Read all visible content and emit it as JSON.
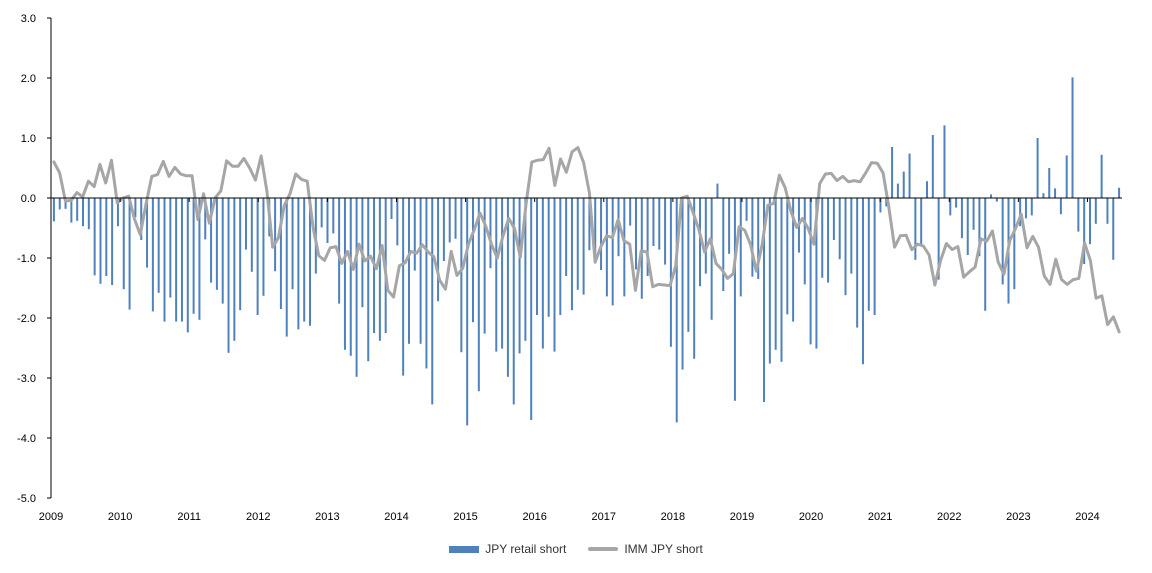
{
  "chart_data": {
    "type": "bar+line",
    "title": "",
    "xlabel": "",
    "ylabel": "",
    "ylim": [
      -5.0,
      3.0
    ],
    "y_ticks": [
      "3.0",
      "2.0",
      "1.0",
      "0.0",
      "-1.0",
      "-2.0",
      "-3.0",
      "-4.0",
      "-5.0"
    ],
    "y_tick_values": [
      3,
      2,
      1,
      0,
      -1,
      -2,
      -3,
      -4,
      -5
    ],
    "x_ticks": [
      "2009",
      "2010",
      "2011",
      "2012",
      "2013",
      "2014",
      "2015",
      "2016",
      "2017",
      "2018",
      "2019",
      "2020",
      "2021",
      "2022",
      "2023",
      "2024"
    ],
    "x_start_year": 2009,
    "x_end_year": 2024.5,
    "grid": false,
    "legend_position": "bottom-center",
    "colors": {
      "bar": "#4f81bd",
      "line": "#a6a6a6",
      "axis": "#000000"
    },
    "series": [
      {
        "name": "JPY retail short",
        "type": "bar",
        "values": [
          -0.39,
          -0.19,
          -0.18,
          -0.41,
          -0.38,
          -0.47,
          -0.52,
          -1.29,
          -1.43,
          -1.3,
          -1.45,
          -0.47,
          -1.52,
          -1.86,
          -0.32,
          -0.7,
          -1.16,
          -1.89,
          -1.58,
          -2.06,
          -1.66,
          -2.06,
          -2.06,
          -2.24,
          -1.93,
          -2.03,
          -0.69,
          -1.41,
          -1.53,
          -1.76,
          -2.58,
          -2.38,
          -1.87,
          -0.86,
          -1.23,
          -1.95,
          -1.63,
          -0.64,
          -1.22,
          -1.85,
          -2.31,
          -1.52,
          -2.19,
          -2.06,
          -2.13,
          -1.26,
          -0.49,
          -0.75,
          -0.59,
          -1.76,
          -2.53,
          -2.63,
          -2.98,
          -1.82,
          -2.72,
          -2.25,
          -2.38,
          -2.25,
          -0.35,
          -0.79,
          -2.96,
          -2.43,
          -1.21,
          -2.43,
          -2.84,
          -3.44,
          -1.72,
          -1.05,
          -0.74,
          -0.68,
          -2.57,
          -3.79,
          -2.07,
          -3.22,
          -2.26,
          -1.17,
          -2.56,
          -2.51,
          -2.98,
          -3.44,
          -2.59,
          -2.38,
          -3.7,
          -1.95,
          -2.51,
          -1.98,
          -2.56,
          -1.95,
          -1.3,
          -1.87,
          -1.53,
          -1.61,
          -0.87,
          -1.08,
          -1.2,
          -1.64,
          -1.79,
          -0.97,
          -1.64,
          -0.46,
          -1.19,
          -1.68,
          -1.3,
          -0.8,
          -0.86,
          -1.11,
          -2.48,
          -3.74,
          -2.86,
          -2.23,
          -2.68,
          -1.47,
          -1.26,
          -2.03,
          0.24,
          -1.55,
          -0.93,
          -3.38,
          -1.64,
          -0.38,
          -1.31,
          -1.35,
          -3.4,
          -2.76,
          -2.53,
          -2.73,
          -1.94,
          -2.06,
          -0.91,
          -1.44,
          -2.44,
          -2.51,
          -1.33,
          -1.41,
          -0.7,
          -1.02,
          -1.62,
          -1.26,
          -2.16,
          -2.77,
          -1.88,
          -1.95,
          -0.24,
          -0.14,
          0.85,
          0.24,
          0.44,
          0.74,
          -1.03,
          -0.77,
          0.28,
          1.05,
          -1.36,
          1.21,
          -0.29,
          -0.16,
          -0.67,
          -0.95,
          -0.53,
          -0.97,
          -1.88,
          0.06,
          -0.06,
          -1.44,
          -1.76,
          -1.52,
          -0.47,
          -0.34,
          -0.29,
          1.0,
          0.08,
          0.5,
          0.16,
          -0.27,
          0.71,
          2.01,
          -0.56,
          -1.1,
          -0.77,
          -0.43,
          0.72,
          -0.43,
          -1.03,
          0.17
        ]
      },
      {
        "name": "IMM JPY short",
        "type": "line",
        "values": [
          0.6,
          0.42,
          -0.05,
          -0.04,
          0.09,
          0.02,
          0.28,
          0.19,
          0.56,
          0.25,
          0.63,
          -0.08,
          0.0,
          0.03,
          -0.35,
          -0.61,
          -0.1,
          0.36,
          0.39,
          0.61,
          0.36,
          0.51,
          0.4,
          0.37,
          0.37,
          -0.36,
          0.07,
          -0.42,
          0.0,
          0.12,
          0.62,
          0.53,
          0.53,
          0.66,
          0.5,
          0.3,
          0.7,
          0.11,
          -0.82,
          -0.66,
          -0.13,
          0.07,
          0.4,
          0.31,
          0.28,
          -0.48,
          -0.96,
          -1.04,
          -0.83,
          -0.81,
          -1.09,
          -0.89,
          -1.19,
          -0.77,
          -1.05,
          -0.97,
          -1.18,
          -0.79,
          -1.54,
          -1.65,
          -1.13,
          -1.08,
          -0.89,
          -0.92,
          -0.78,
          -0.9,
          -0.98,
          -1.37,
          -1.52,
          -0.89,
          -1.29,
          -1.17,
          -0.77,
          -0.53,
          -0.25,
          -0.47,
          -0.77,
          -1.0,
          -0.63,
          -0.34,
          -0.51,
          -0.99,
          -0.1,
          0.6,
          0.63,
          0.64,
          0.83,
          0.21,
          0.65,
          0.43,
          0.77,
          0.84,
          0.59,
          0.09,
          -1.07,
          -0.81,
          -0.63,
          -0.66,
          -0.36,
          -0.71,
          -0.77,
          -1.54,
          -0.88,
          -0.9,
          -1.48,
          -1.44,
          -1.45,
          -1.46,
          -1.13,
          0.0,
          0.03,
          -0.24,
          -0.52,
          -0.9,
          -0.68,
          -1.09,
          -1.19,
          -1.34,
          -1.26,
          -0.48,
          -0.54,
          -0.78,
          -1.22,
          -0.78,
          -0.12,
          -0.09,
          0.38,
          0.17,
          -0.22,
          -0.49,
          -0.34,
          -0.51,
          -0.77,
          0.24,
          0.4,
          0.41,
          0.29,
          0.36,
          0.27,
          0.29,
          0.27,
          0.42,
          0.59,
          0.58,
          0.42,
          -0.15,
          -0.82,
          -0.63,
          -0.62,
          -0.86,
          -0.77,
          -0.8,
          -0.95,
          -1.45,
          -1.04,
          -0.76,
          -0.86,
          -0.81,
          -1.32,
          -1.23,
          -1.15,
          -0.68,
          -0.72,
          -0.55,
          -1.07,
          -1.27,
          -0.71,
          -0.51,
          -0.27,
          -0.83,
          -0.64,
          -0.82,
          -1.3,
          -1.44,
          -1.02,
          -1.36,
          -1.44,
          -1.36,
          -1.34,
          -0.75,
          -1.04,
          -1.67,
          -1.63,
          -2.11,
          -1.98,
          -2.23
        ]
      }
    ]
  },
  "legend": {
    "items": [
      {
        "label": "JPY retail short",
        "kind": "bar"
      },
      {
        "label": "IMM JPY short",
        "kind": "line"
      }
    ]
  }
}
